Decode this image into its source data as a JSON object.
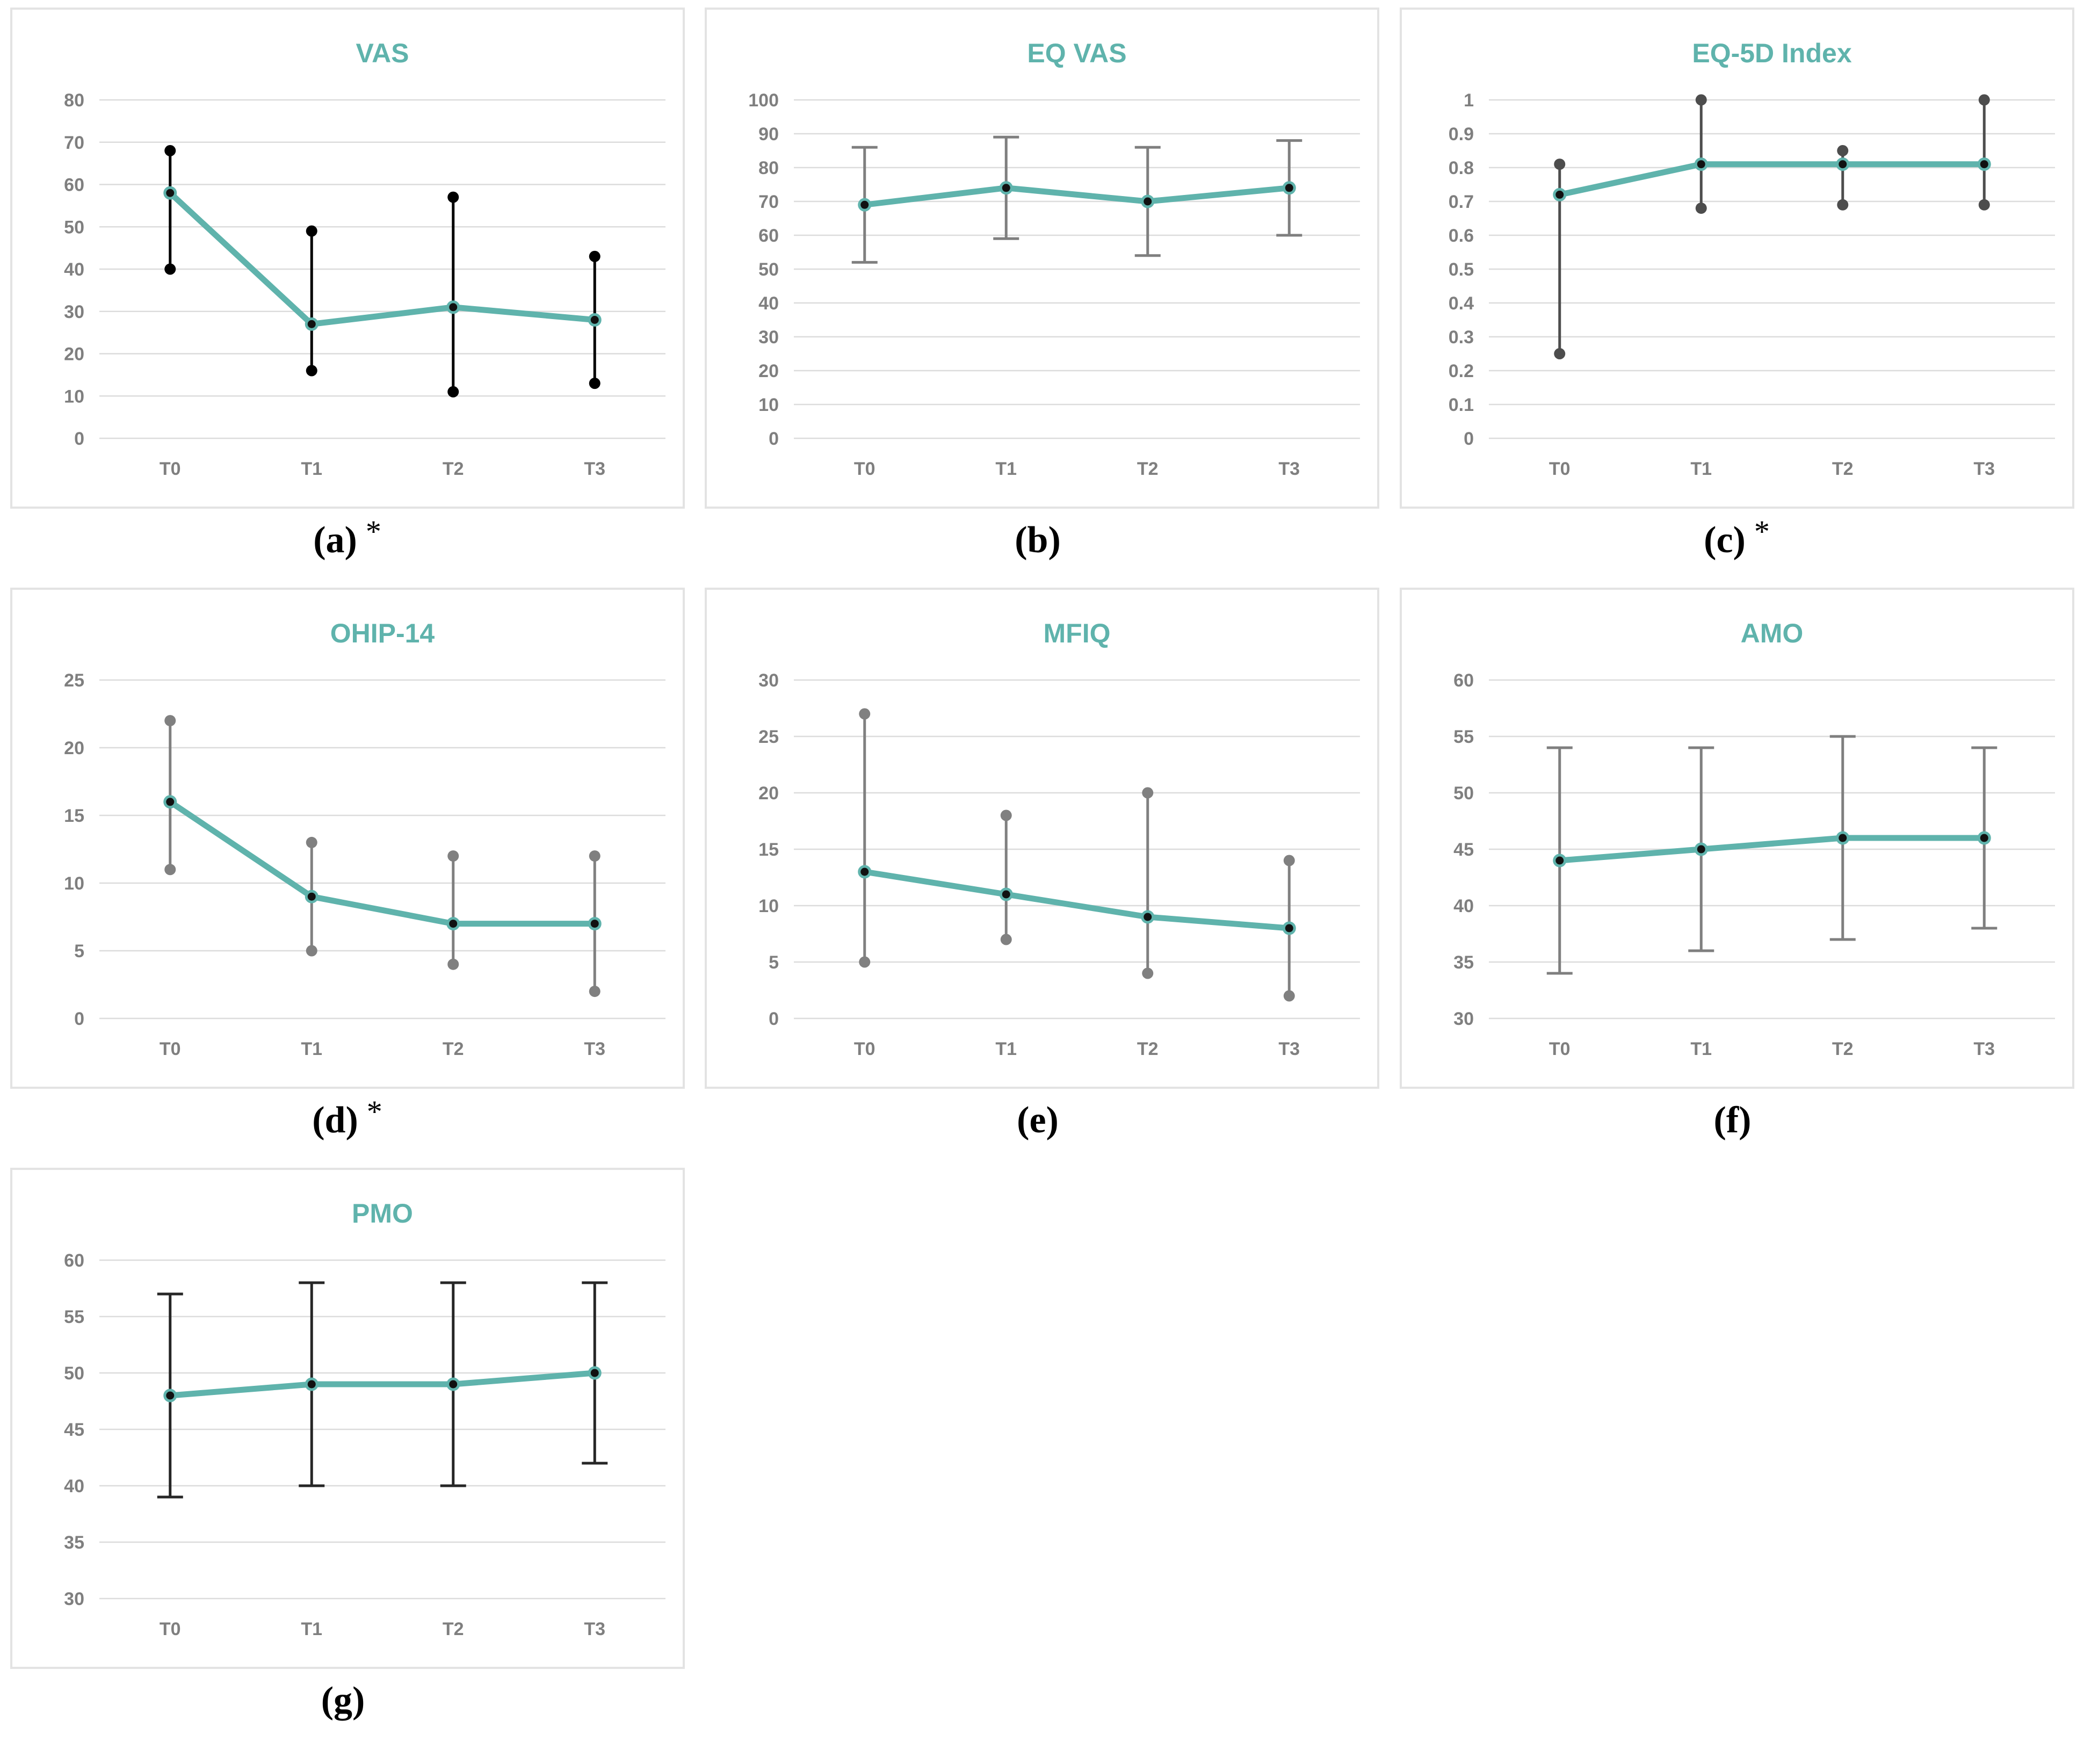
{
  "figure": {
    "accent_color": "#5fb3ac",
    "grid_color": "#dcdcdc",
    "tick_color": "#7f7f7f",
    "panel_border_color": "#e3e3e3",
    "marker_color": "#111111"
  },
  "chart_data": [
    {
      "id": "vas",
      "type": "line",
      "title": "VAS",
      "caption": "(a)",
      "caption_note": "*",
      "categories": [
        "T0",
        "T1",
        "T2",
        "T3"
      ],
      "values": [
        58,
        27,
        31,
        28
      ],
      "error_low": [
        40,
        16,
        11,
        13
      ],
      "error_high": [
        68,
        49,
        57,
        43
      ],
      "ylim": [
        0,
        80
      ],
      "ytick_step": 10,
      "grid": true,
      "legend": "none",
      "error_style": "dot",
      "error_color": "#000000"
    },
    {
      "id": "eqvas",
      "type": "line",
      "title": "EQ VAS",
      "caption": "(b)",
      "caption_note": "",
      "categories": [
        "T0",
        "T1",
        "T2",
        "T3"
      ],
      "values": [
        69,
        74,
        70,
        74
      ],
      "error_low": [
        52,
        59,
        54,
        60
      ],
      "error_high": [
        86,
        89,
        86,
        88
      ],
      "ylim": [
        0,
        100
      ],
      "ytick_step": 10,
      "grid": true,
      "legend": "none",
      "error_style": "cap",
      "error_color": "#7f7f7f"
    },
    {
      "id": "eq5d",
      "type": "line",
      "title": "EQ-5D Index",
      "caption": "(c)",
      "caption_note": "*",
      "categories": [
        "T0",
        "T1",
        "T2",
        "T3"
      ],
      "values": [
        0.72,
        0.81,
        0.81,
        0.81
      ],
      "error_low": [
        0.25,
        0.68,
        0.69,
        0.69
      ],
      "error_high": [
        0.81,
        1,
        0.85,
        1
      ],
      "ylim": [
        0,
        1
      ],
      "ytick_step": 0.1,
      "grid": true,
      "legend": "none",
      "error_style": "dot",
      "error_color": "#4d4d4d"
    },
    {
      "id": "ohip",
      "type": "line",
      "title": "OHIP-14",
      "caption": "(d)",
      "caption_note": "*",
      "categories": [
        "T0",
        "T1",
        "T2",
        "T3"
      ],
      "values": [
        16,
        9,
        7,
        7
      ],
      "error_low": [
        11,
        5,
        4,
        2
      ],
      "error_high": [
        22,
        13,
        12,
        12
      ],
      "ylim": [
        0,
        25
      ],
      "ytick_step": 5,
      "grid": true,
      "legend": "none",
      "error_style": "dot",
      "error_color": "#808080"
    },
    {
      "id": "mfiq",
      "type": "line",
      "title": "MFIQ",
      "caption": "(e)",
      "caption_note": "",
      "categories": [
        "T0",
        "T1",
        "T2",
        "T3"
      ],
      "values": [
        13,
        11,
        9,
        8
      ],
      "error_low": [
        5,
        7,
        4,
        2
      ],
      "error_high": [
        27,
        18,
        20,
        14
      ],
      "ylim": [
        0,
        30
      ],
      "ytick_step": 5,
      "grid": true,
      "legend": "none",
      "error_style": "dot",
      "error_color": "#808080"
    },
    {
      "id": "amo",
      "type": "line",
      "title": "AMO",
      "caption": "(f)",
      "caption_note": "",
      "categories": [
        "T0",
        "T1",
        "T2",
        "T3"
      ],
      "values": [
        44,
        45,
        46,
        46
      ],
      "error_low": [
        34,
        36,
        37,
        38
      ],
      "error_high": [
        54,
        54,
        55,
        54
      ],
      "ylim": [
        30,
        60
      ],
      "ytick_step": 5,
      "grid": true,
      "legend": "none",
      "error_style": "cap",
      "error_color": "#7f7f7f"
    },
    {
      "id": "pmo",
      "type": "line",
      "title": "PMO",
      "caption": "(g)",
      "caption_note": "",
      "categories": [
        "T0",
        "T1",
        "T2",
        "T3"
      ],
      "values": [
        48,
        49,
        49,
        50
      ],
      "error_low": [
        39,
        40,
        40,
        42
      ],
      "error_high": [
        57,
        58,
        58,
        58
      ],
      "ylim": [
        30,
        60
      ],
      "ytick_step": 5,
      "grid": true,
      "legend": "none",
      "error_style": "cap",
      "error_color": "#262626"
    }
  ]
}
